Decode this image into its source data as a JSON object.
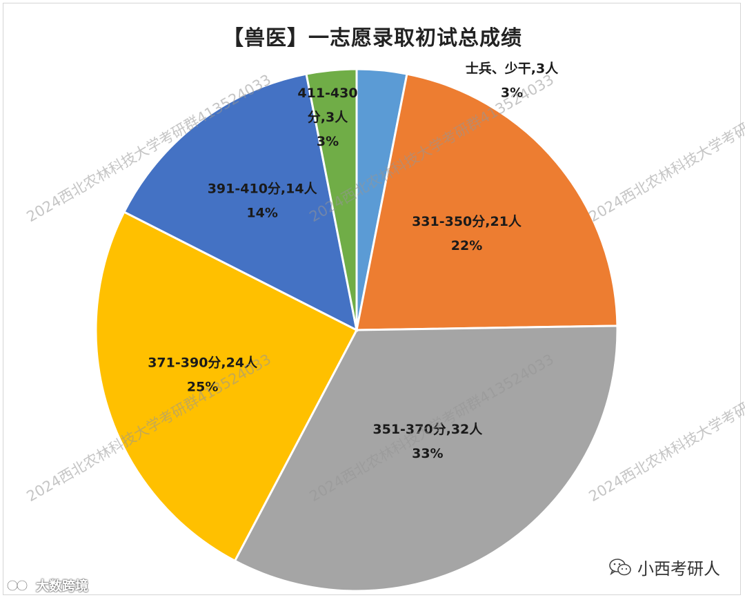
{
  "chart_data": {
    "type": "pie",
    "title": "【兽医】一志愿录取初试总成绩",
    "slices": [
      {
        "label": "士兵、少干,3人",
        "value": 3,
        "percent": "3%",
        "color": "#5B9BD5"
      },
      {
        "label": "331-350分,21人",
        "value": 21,
        "percent": "22%",
        "color": "#ED7D31"
      },
      {
        "label": "351-370分,32人",
        "value": 32,
        "percent": "33%",
        "color": "#A5A5A5"
      },
      {
        "label": "371-390分,24人",
        "value": 24,
        "percent": "25%",
        "color": "#FFC000"
      },
      {
        "label": "391-410分,14人",
        "value": 14,
        "percent": "14%",
        "color": "#4472C4"
      },
      {
        "label": "411-430分,3人",
        "value": 3,
        "percent": "3%",
        "color": "#70AD47"
      }
    ],
    "start_angle": "12 o'clock",
    "direction": "clockwise",
    "legend": "none"
  },
  "watermark_text": "2024西北农林科技大学考研群413524033",
  "brand": {
    "label": "小西考研人",
    "icon": "wechat-icon"
  },
  "platform_mark": {
    "label": "大数跨境",
    "icon": "platform-logo-icon"
  }
}
